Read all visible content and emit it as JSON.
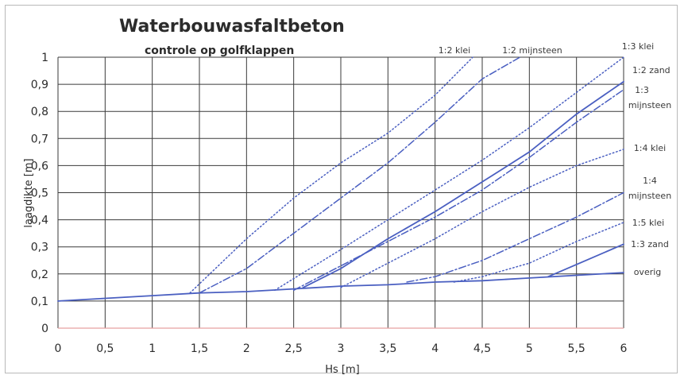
{
  "chart_data": {
    "type": "line",
    "title": "Waterbouwasfaltbeton",
    "subtitle": "controle op golfklappen",
    "xlabel": "Hs [m]",
    "ylabel": "laagdikte [m]",
    "xlim": [
      0,
      6
    ],
    "ylim": [
      0,
      1
    ],
    "x_ticks": [
      "0",
      "0,5",
      "1",
      "1,5",
      "2",
      "2,5",
      "3",
      "3,5",
      "4",
      "4,5",
      "5",
      "5,5",
      "6"
    ],
    "y_ticks": [
      "0",
      "0,1",
      "0,2",
      "0,3",
      "0,4",
      "0,5",
      "0,6",
      "0,7",
      "0,8",
      "0,9",
      "1"
    ],
    "grid": true,
    "colors": {
      "series": "#4a5fc1",
      "grid": "#3a3a3a",
      "zero_line": "#e8a0a0"
    },
    "series": [
      {
        "name": "1:2 klei",
        "style": "dotted",
        "x": [
          1.4,
          2.0,
          2.5,
          3.0,
          3.5,
          4.0,
          4.4
        ],
        "y": [
          0.13,
          0.33,
          0.48,
          0.61,
          0.72,
          0.86,
          1.0
        ]
      },
      {
        "name": "1:2 mijnsteen",
        "style": "dashdot",
        "x": [
          1.5,
          2.0,
          2.5,
          3.0,
          3.5,
          4.0,
          4.5,
          4.9
        ],
        "y": [
          0.13,
          0.22,
          0.35,
          0.48,
          0.61,
          0.76,
          0.92,
          1.0
        ]
      },
      {
        "name": "1:3 klei",
        "style": "dotted",
        "x": [
          2.3,
          3.0,
          3.5,
          4.0,
          4.5,
          5.0,
          5.5,
          6.0
        ],
        "y": [
          0.14,
          0.29,
          0.4,
          0.51,
          0.62,
          0.74,
          0.87,
          1.0
        ]
      },
      {
        "name": "1:2 zand",
        "style": "solid",
        "x": [
          2.6,
          3.0,
          3.5,
          4.0,
          4.5,
          5.0,
          5.5,
          6.0
        ],
        "y": [
          0.15,
          0.22,
          0.33,
          0.43,
          0.54,
          0.65,
          0.79,
          0.91
        ]
      },
      {
        "name": "1:3 mijnsteen",
        "style": "dashdot",
        "x": [
          2.5,
          3.0,
          3.5,
          4.0,
          4.5,
          5.0,
          5.5,
          6.0
        ],
        "y": [
          0.14,
          0.23,
          0.32,
          0.41,
          0.51,
          0.63,
          0.76,
          0.88
        ]
      },
      {
        "name": "1:4 klei",
        "style": "dotted",
        "x": [
          3.0,
          3.5,
          4.0,
          4.5,
          5.0,
          5.5,
          6.0
        ],
        "y": [
          0.15,
          0.24,
          0.33,
          0.43,
          0.52,
          0.6,
          0.66
        ]
      },
      {
        "name": "1:4 mijnsteen",
        "style": "dashdot",
        "x": [
          3.7,
          4.0,
          4.5,
          5.0,
          5.5,
          6.0
        ],
        "y": [
          0.17,
          0.19,
          0.25,
          0.33,
          0.41,
          0.5
        ]
      },
      {
        "name": "1:5 klei",
        "style": "dotted",
        "x": [
          4.2,
          4.5,
          5.0,
          5.5,
          6.0
        ],
        "y": [
          0.17,
          0.19,
          0.24,
          0.32,
          0.39
        ]
      },
      {
        "name": "1:3 zand",
        "style": "solid",
        "x": [
          5.2,
          5.6,
          6.0
        ],
        "y": [
          0.19,
          0.25,
          0.31
        ]
      },
      {
        "name": "overig",
        "style": "solid",
        "x": [
          0.0,
          0.5,
          1.0,
          1.5,
          2.0,
          2.5,
          3.0,
          3.5,
          4.0,
          4.5,
          5.0,
          5.5,
          6.0
        ],
        "y": [
          0.1,
          0.11,
          0.12,
          0.13,
          0.135,
          0.145,
          0.155,
          0.16,
          0.17,
          0.175,
          0.185,
          0.195,
          0.205
        ]
      }
    ],
    "series_labels": [
      {
        "text": "1:2 klei"
      },
      {
        "text": "1:2 mijnsteen"
      },
      {
        "text": "1:3 klei"
      },
      {
        "text": "1:2 zand"
      },
      {
        "text": "1:3"
      },
      {
        "text": "mijnsteen"
      },
      {
        "text": "1:4 klei"
      },
      {
        "text": "1:4"
      },
      {
        "text": "mijnsteen"
      },
      {
        "text": "1:5 klei"
      },
      {
        "text": "1:3 zand"
      },
      {
        "text": "overig"
      }
    ]
  }
}
